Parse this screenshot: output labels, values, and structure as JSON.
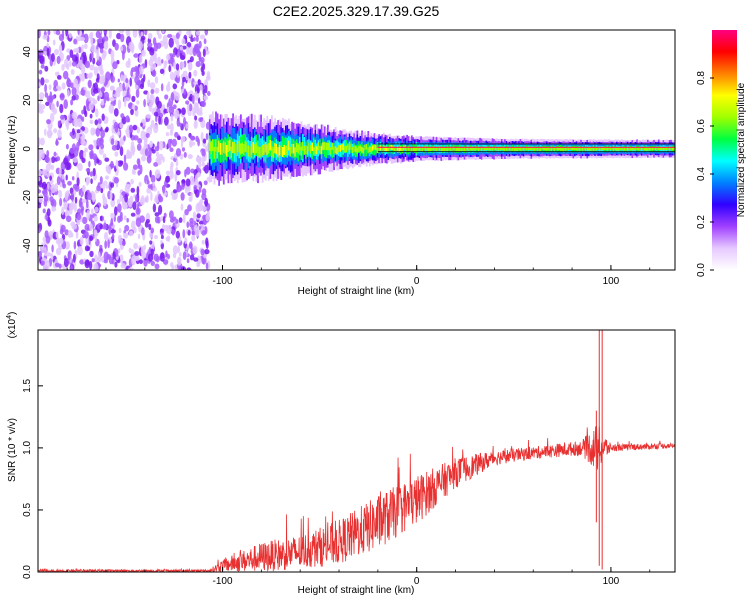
{
  "title": "C2E2.2025.329.17.39.G25",
  "chart_data": [
    {
      "type": "heatmap",
      "xlabel": "Height of straight line (km)",
      "ylabel": "Frequency (Hz)",
      "xlim": [
        -195,
        133
      ],
      "ylim": [
        -50,
        49
      ],
      "xticks": [
        -100,
        0,
        100
      ],
      "yticks": [
        -40,
        -20,
        0,
        20,
        40
      ],
      "colorbar": {
        "label": "Normalized spectral amplitude",
        "range": [
          0,
          1
        ],
        "ticks": [
          "0.0",
          "0.2",
          "0.4",
          "0.6",
          "0.8"
        ],
        "colors": [
          "#ffffff",
          "#e6c8ff",
          "#a040ff",
          "#3000ff",
          "#0080ff",
          "#00ffff",
          "#00ff40",
          "#a0ff00",
          "#ffff00",
          "#ff8000",
          "#ff0000",
          "#ff0080"
        ]
      },
      "noise_region_x": [
        -195,
        -107
      ],
      "signal": {
        "center_frequency": 0,
        "band_halfwidth_at": [
          {
            "x": -107,
            "hz": 7
          },
          {
            "x": -70,
            "hz": 6
          },
          {
            "x": -40,
            "hz": 4
          },
          {
            "x": -20,
            "hz": 3
          },
          {
            "x": 0,
            "hz": 2.5
          },
          {
            "x": 50,
            "hz": 2
          },
          {
            "x": 133,
            "hz": 1.8
          }
        ]
      }
    },
    {
      "type": "line",
      "xlabel": "Height of straight line (km)",
      "ylabel": "SNR (10 * v/v)",
      "multiplier": "(x10",
      "multiplier_exp": "4",
      "multiplier_close": ")",
      "xlim": [
        -195,
        133
      ],
      "ylim": [
        0,
        1.95
      ],
      "xticks": [
        -100,
        0,
        100
      ],
      "yticks": [
        "0.0",
        "0.5",
        "1.0",
        "1.5"
      ],
      "line_color": "#e83030",
      "envelope": [
        {
          "x": -195,
          "mean": 0.01,
          "amp": 0.01
        },
        {
          "x": -107,
          "mean": 0.01,
          "amp": 0.01
        },
        {
          "x": -100,
          "mean": 0.05,
          "amp": 0.05
        },
        {
          "x": -80,
          "mean": 0.12,
          "amp": 0.12
        },
        {
          "x": -60,
          "mean": 0.16,
          "amp": 0.14
        },
        {
          "x": -40,
          "mean": 0.24,
          "amp": 0.18
        },
        {
          "x": -20,
          "mean": 0.4,
          "amp": 0.22
        },
        {
          "x": 0,
          "mean": 0.58,
          "amp": 0.2
        },
        {
          "x": 20,
          "mean": 0.8,
          "amp": 0.12
        },
        {
          "x": 40,
          "mean": 0.92,
          "amp": 0.06
        },
        {
          "x": 60,
          "mean": 0.96,
          "amp": 0.05
        },
        {
          "x": 85,
          "mean": 1.0,
          "amp": 0.06
        },
        {
          "x": 93,
          "mean": 1.0,
          "amp": 0.2
        },
        {
          "x": 100,
          "mean": 1.0,
          "amp": 0.03
        },
        {
          "x": 133,
          "mean": 1.02,
          "amp": 0.02
        }
      ],
      "spikes": [
        {
          "x": 94,
          "low": 0.05,
          "high": 1.95
        },
        {
          "x": 95.5,
          "low": 0.02,
          "high": 1.95
        },
        {
          "x": 92.5,
          "low": 0.4,
          "high": 1.3
        }
      ]
    }
  ]
}
